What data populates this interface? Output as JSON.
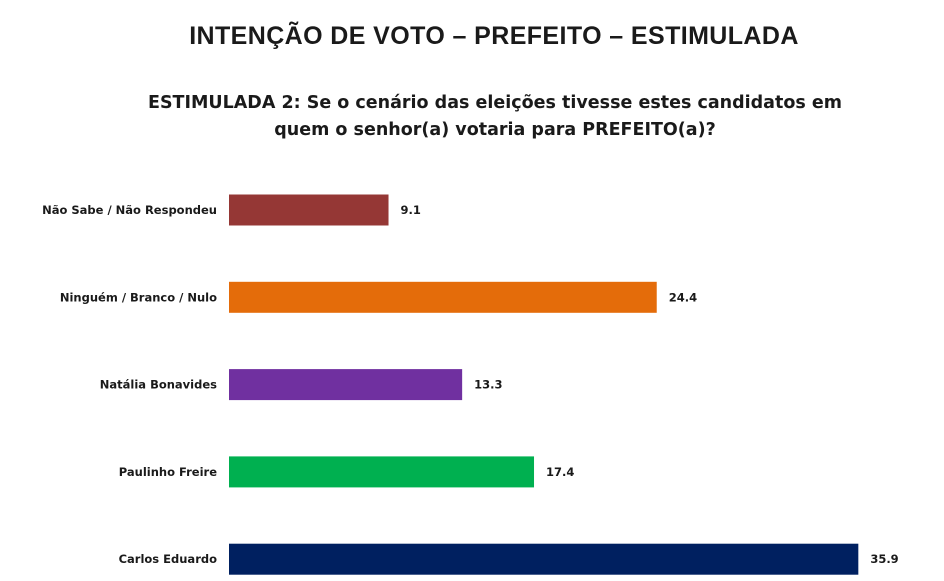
{
  "title": "INTENÇÃO DE VOTO – PREFEITO – ESTIMULADA",
  "subtitle": "ESTIMULADA 2: Se o cenário das eleições tivesse estes candidatos em quem o senhor(a) votaria para PREFEITO(a)?",
  "chart_data": {
    "type": "bar",
    "orientation": "horizontal",
    "title": "INTENÇÃO DE VOTO – PREFEITO – ESTIMULADA",
    "subtitle": "ESTIMULADA 2: Se o cenário das eleições tivesse estes candidatos em quem o senhor(a) votaria para PREFEITO(a)?",
    "categories": [
      "Não Sabe / Não Respondeu",
      "Ninguém / Branco / Nulo",
      "Natália Bonavides",
      "Paulinho Freire",
      "Carlos Eduardo"
    ],
    "values": [
      9.1,
      24.4,
      13.3,
      17.4,
      35.9
    ],
    "value_labels": [
      "9.1",
      "24.4",
      "13.3",
      "17.4",
      "35.9"
    ],
    "colors": [
      "#953735",
      "#E46C0A",
      "#7030A0",
      "#00B050",
      "#002060"
    ],
    "xlim": [
      0,
      36
    ],
    "grid": false,
    "legend": "none",
    "xlabel": "",
    "ylabel": ""
  }
}
